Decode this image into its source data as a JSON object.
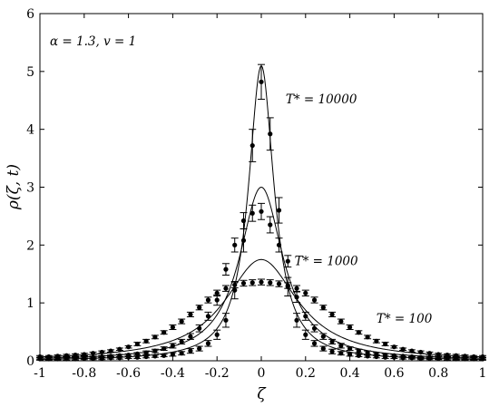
{
  "chart_data": {
    "type": "line",
    "xlabel": "ζ",
    "ylabel": "ρ(ζ, t)",
    "xlim": [
      -1,
      1
    ],
    "ylim": [
      0,
      6
    ],
    "x_ticks": [
      "-1",
      "-0.8",
      "-0.6",
      "-0.4",
      "-0.2",
      "0",
      "0.2",
      "0.4",
      "0.6",
      "0.8",
      "1"
    ],
    "y_ticks": [
      "0",
      "1",
      "2",
      "3",
      "4",
      "5",
      "6"
    ],
    "parameter_label": "α = 1.3, v = 1",
    "series": [
      {
        "name": "T* = 10000",
        "curve_peak": 5.1,
        "curve_width": 0.07,
        "points": [
          {
            "x": -1.0,
            "y": 0.03,
            "err": 0.02
          },
          {
            "x": -0.96,
            "y": 0.03,
            "err": 0.02
          },
          {
            "x": -0.92,
            "y": 0.03,
            "err": 0.02
          },
          {
            "x": -0.88,
            "y": 0.03,
            "err": 0.02
          },
          {
            "x": -0.84,
            "y": 0.03,
            "err": 0.02
          },
          {
            "x": -0.8,
            "y": 0.04,
            "err": 0.02
          },
          {
            "x": -0.76,
            "y": 0.04,
            "err": 0.02
          },
          {
            "x": -0.72,
            "y": 0.04,
            "err": 0.02
          },
          {
            "x": -0.68,
            "y": 0.05,
            "err": 0.02
          },
          {
            "x": -0.64,
            "y": 0.05,
            "err": 0.02
          },
          {
            "x": -0.6,
            "y": 0.06,
            "err": 0.02
          },
          {
            "x": -0.56,
            "y": 0.06,
            "err": 0.02
          },
          {
            "x": -0.52,
            "y": 0.07,
            "err": 0.02
          },
          {
            "x": -0.48,
            "y": 0.08,
            "err": 0.02
          },
          {
            "x": -0.44,
            "y": 0.09,
            "err": 0.02
          },
          {
            "x": -0.4,
            "y": 0.11,
            "err": 0.03
          },
          {
            "x": -0.36,
            "y": 0.13,
            "err": 0.03
          },
          {
            "x": -0.32,
            "y": 0.17,
            "err": 0.04
          },
          {
            "x": -0.28,
            "y": 0.21,
            "err": 0.04
          },
          {
            "x": -0.24,
            "y": 0.3,
            "err": 0.05
          },
          {
            "x": -0.2,
            "y": 0.45,
            "err": 0.08
          },
          {
            "x": -0.16,
            "y": 0.7,
            "err": 0.12
          },
          {
            "x": -0.12,
            "y": 1.22,
            "err": 0.15
          },
          {
            "x": -0.08,
            "y": 2.08,
            "err": 0.2
          },
          {
            "x": -0.04,
            "y": 3.72,
            "err": 0.28
          },
          {
            "x": 0.0,
            "y": 4.82,
            "err": 0.3
          },
          {
            "x": 0.04,
            "y": 3.92,
            "err": 0.28
          },
          {
            "x": 0.08,
            "y": 2.6,
            "err": 0.22
          },
          {
            "x": 0.12,
            "y": 1.28,
            "err": 0.16
          },
          {
            "x": 0.16,
            "y": 0.7,
            "err": 0.12
          },
          {
            "x": 0.2,
            "y": 0.45,
            "err": 0.08
          },
          {
            "x": 0.24,
            "y": 0.3,
            "err": 0.05
          },
          {
            "x": 0.28,
            "y": 0.21,
            "err": 0.04
          },
          {
            "x": 0.32,
            "y": 0.16,
            "err": 0.04
          },
          {
            "x": 0.36,
            "y": 0.13,
            "err": 0.03
          },
          {
            "x": 0.4,
            "y": 0.11,
            "err": 0.03
          },
          {
            "x": 0.44,
            "y": 0.09,
            "err": 0.02
          },
          {
            "x": 0.48,
            "y": 0.08,
            "err": 0.02
          },
          {
            "x": 0.52,
            "y": 0.07,
            "err": 0.02
          },
          {
            "x": 0.56,
            "y": 0.06,
            "err": 0.02
          },
          {
            "x": 0.6,
            "y": 0.06,
            "err": 0.02
          },
          {
            "x": 0.64,
            "y": 0.05,
            "err": 0.02
          },
          {
            "x": 0.68,
            "y": 0.05,
            "err": 0.02
          },
          {
            "x": 0.72,
            "y": 0.04,
            "err": 0.02
          },
          {
            "x": 0.76,
            "y": 0.04,
            "err": 0.02
          },
          {
            "x": 0.8,
            "y": 0.04,
            "err": 0.02
          },
          {
            "x": 0.84,
            "y": 0.03,
            "err": 0.02
          },
          {
            "x": 0.88,
            "y": 0.03,
            "err": 0.02
          },
          {
            "x": 0.92,
            "y": 0.03,
            "err": 0.02
          },
          {
            "x": 0.96,
            "y": 0.03,
            "err": 0.02
          },
          {
            "x": 1.0,
            "y": 0.03,
            "err": 0.02
          }
        ]
      },
      {
        "name": "T* = 1000",
        "curve_peak": 3.0,
        "curve_width": 0.12,
        "points": [
          {
            "x": -1.0,
            "y": 0.04,
            "err": 0.02
          },
          {
            "x": -0.96,
            "y": 0.04,
            "err": 0.02
          },
          {
            "x": -0.92,
            "y": 0.04,
            "err": 0.02
          },
          {
            "x": -0.88,
            "y": 0.05,
            "err": 0.02
          },
          {
            "x": -0.84,
            "y": 0.05,
            "err": 0.02
          },
          {
            "x": -0.8,
            "y": 0.06,
            "err": 0.02
          },
          {
            "x": -0.76,
            "y": 0.06,
            "err": 0.02
          },
          {
            "x": -0.72,
            "y": 0.07,
            "err": 0.02
          },
          {
            "x": -0.68,
            "y": 0.08,
            "err": 0.02
          },
          {
            "x": -0.64,
            "y": 0.09,
            "err": 0.02
          },
          {
            "x": -0.6,
            "y": 0.1,
            "err": 0.02
          },
          {
            "x": -0.56,
            "y": 0.12,
            "err": 0.02
          },
          {
            "x": -0.52,
            "y": 0.14,
            "err": 0.03
          },
          {
            "x": -0.48,
            "y": 0.17,
            "err": 0.03
          },
          {
            "x": -0.44,
            "y": 0.21,
            "err": 0.03
          },
          {
            "x": -0.4,
            "y": 0.26,
            "err": 0.04
          },
          {
            "x": -0.36,
            "y": 0.33,
            "err": 0.04
          },
          {
            "x": -0.32,
            "y": 0.42,
            "err": 0.05
          },
          {
            "x": -0.28,
            "y": 0.56,
            "err": 0.06
          },
          {
            "x": -0.24,
            "y": 0.77,
            "err": 0.07
          },
          {
            "x": -0.2,
            "y": 1.05,
            "err": 0.09
          },
          {
            "x": -0.16,
            "y": 1.58,
            "err": 0.1
          },
          {
            "x": -0.12,
            "y": 2.0,
            "err": 0.12
          },
          {
            "x": -0.08,
            "y": 2.42,
            "err": 0.14
          },
          {
            "x": -0.04,
            "y": 2.55,
            "err": 0.14
          },
          {
            "x": 0.0,
            "y": 2.58,
            "err": 0.14
          },
          {
            "x": 0.04,
            "y": 2.35,
            "err": 0.14
          },
          {
            "x": 0.08,
            "y": 2.0,
            "err": 0.12
          },
          {
            "x": 0.12,
            "y": 1.72,
            "err": 0.1
          },
          {
            "x": 0.16,
            "y": 1.1,
            "err": 0.09
          },
          {
            "x": 0.2,
            "y": 0.77,
            "err": 0.07
          },
          {
            "x": 0.24,
            "y": 0.56,
            "err": 0.06
          },
          {
            "x": 0.28,
            "y": 0.42,
            "err": 0.05
          },
          {
            "x": 0.32,
            "y": 0.33,
            "err": 0.04
          },
          {
            "x": 0.36,
            "y": 0.26,
            "err": 0.04
          },
          {
            "x": 0.4,
            "y": 0.21,
            "err": 0.03
          },
          {
            "x": 0.44,
            "y": 0.17,
            "err": 0.03
          },
          {
            "x": 0.48,
            "y": 0.14,
            "err": 0.03
          },
          {
            "x": 0.52,
            "y": 0.12,
            "err": 0.02
          },
          {
            "x": 0.56,
            "y": 0.1,
            "err": 0.02
          },
          {
            "x": 0.6,
            "y": 0.09,
            "err": 0.02
          },
          {
            "x": 0.64,
            "y": 0.08,
            "err": 0.02
          },
          {
            "x": 0.68,
            "y": 0.07,
            "err": 0.02
          },
          {
            "x": 0.72,
            "y": 0.06,
            "err": 0.02
          },
          {
            "x": 0.76,
            "y": 0.06,
            "err": 0.02
          },
          {
            "x": 0.8,
            "y": 0.05,
            "err": 0.02
          },
          {
            "x": 0.84,
            "y": 0.05,
            "err": 0.02
          },
          {
            "x": 0.88,
            "y": 0.04,
            "err": 0.02
          },
          {
            "x": 0.92,
            "y": 0.04,
            "err": 0.02
          },
          {
            "x": 0.96,
            "y": 0.04,
            "err": 0.02
          },
          {
            "x": 1.0,
            "y": 0.04,
            "err": 0.02
          }
        ]
      },
      {
        "name": "T* = 100",
        "curve_peak": 1.75,
        "curve_width": 0.2,
        "points": [
          {
            "x": -1.0,
            "y": 0.07,
            "err": 0.02
          },
          {
            "x": -0.96,
            "y": 0.07,
            "err": 0.02
          },
          {
            "x": -0.92,
            "y": 0.08,
            "err": 0.02
          },
          {
            "x": -0.88,
            "y": 0.09,
            "err": 0.02
          },
          {
            "x": -0.84,
            "y": 0.1,
            "err": 0.02
          },
          {
            "x": -0.8,
            "y": 0.11,
            "err": 0.02
          },
          {
            "x": -0.76,
            "y": 0.13,
            "err": 0.02
          },
          {
            "x": -0.72,
            "y": 0.15,
            "err": 0.02
          },
          {
            "x": -0.68,
            "y": 0.17,
            "err": 0.02
          },
          {
            "x": -0.64,
            "y": 0.2,
            "err": 0.02
          },
          {
            "x": -0.6,
            "y": 0.24,
            "err": 0.02
          },
          {
            "x": -0.56,
            "y": 0.29,
            "err": 0.03
          },
          {
            "x": -0.52,
            "y": 0.34,
            "err": 0.03
          },
          {
            "x": -0.48,
            "y": 0.41,
            "err": 0.03
          },
          {
            "x": -0.44,
            "y": 0.49,
            "err": 0.03
          },
          {
            "x": -0.4,
            "y": 0.58,
            "err": 0.04
          },
          {
            "x": -0.36,
            "y": 0.68,
            "err": 0.04
          },
          {
            "x": -0.32,
            "y": 0.8,
            "err": 0.04
          },
          {
            "x": -0.28,
            "y": 0.92,
            "err": 0.04
          },
          {
            "x": -0.24,
            "y": 1.05,
            "err": 0.05
          },
          {
            "x": -0.2,
            "y": 1.17,
            "err": 0.05
          },
          {
            "x": -0.16,
            "y": 1.25,
            "err": 0.05
          },
          {
            "x": -0.12,
            "y": 1.31,
            "err": 0.05
          },
          {
            "x": -0.08,
            "y": 1.34,
            "err": 0.05
          },
          {
            "x": -0.04,
            "y": 1.35,
            "err": 0.05
          },
          {
            "x": 0.0,
            "y": 1.36,
            "err": 0.05
          },
          {
            "x": 0.04,
            "y": 1.35,
            "err": 0.05
          },
          {
            "x": 0.08,
            "y": 1.33,
            "err": 0.05
          },
          {
            "x": 0.12,
            "y": 1.3,
            "err": 0.05
          },
          {
            "x": 0.16,
            "y": 1.25,
            "err": 0.05
          },
          {
            "x": 0.2,
            "y": 1.17,
            "err": 0.05
          },
          {
            "x": 0.24,
            "y": 1.05,
            "err": 0.05
          },
          {
            "x": 0.28,
            "y": 0.92,
            "err": 0.04
          },
          {
            "x": 0.32,
            "y": 0.8,
            "err": 0.04
          },
          {
            "x": 0.36,
            "y": 0.68,
            "err": 0.04
          },
          {
            "x": 0.4,
            "y": 0.58,
            "err": 0.04
          },
          {
            "x": 0.44,
            "y": 0.49,
            "err": 0.03
          },
          {
            "x": 0.48,
            "y": 0.41,
            "err": 0.03
          },
          {
            "x": 0.52,
            "y": 0.34,
            "err": 0.03
          },
          {
            "x": 0.56,
            "y": 0.29,
            "err": 0.03
          },
          {
            "x": 0.6,
            "y": 0.24,
            "err": 0.02
          },
          {
            "x": 0.64,
            "y": 0.2,
            "err": 0.02
          },
          {
            "x": 0.68,
            "y": 0.17,
            "err": 0.02
          },
          {
            "x": 0.72,
            "y": 0.15,
            "err": 0.02
          },
          {
            "x": 0.76,
            "y": 0.13,
            "err": 0.02
          },
          {
            "x": 0.8,
            "y": 0.11,
            "err": 0.02
          },
          {
            "x": 0.84,
            "y": 0.1,
            "err": 0.02
          },
          {
            "x": 0.88,
            "y": 0.09,
            "err": 0.02
          },
          {
            "x": 0.92,
            "y": 0.08,
            "err": 0.02
          },
          {
            "x": 0.96,
            "y": 0.07,
            "err": 0.02
          },
          {
            "x": 1.0,
            "y": 0.07,
            "err": 0.02
          }
        ]
      }
    ],
    "annotations": [
      {
        "text": "T* = 10000",
        "x": 0.11,
        "y": 4.45
      },
      {
        "text": "T* = 1000",
        "x": 0.15,
        "y": 1.65
      },
      {
        "text": "T* = 100",
        "x": 0.52,
        "y": 0.66
      }
    ],
    "grid": false,
    "legend": "none"
  }
}
